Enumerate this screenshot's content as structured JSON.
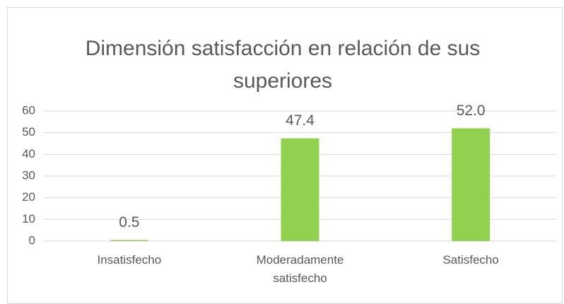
{
  "chart_data": {
    "type": "bar",
    "title": "Dimensión satisfacción en relación de sus superiores",
    "categories": [
      "Insatisfecho",
      "Moderadamente satisfecho",
      "Satisfecho"
    ],
    "values": [
      0.5,
      47.4,
      52.0
    ],
    "value_labels": [
      "0.5",
      "47.4",
      "52.0"
    ],
    "color": "#92d050",
    "ylim": [
      0,
      60
    ],
    "yticks": [
      0,
      10,
      20,
      30,
      40,
      50,
      60
    ],
    "grid": true
  }
}
